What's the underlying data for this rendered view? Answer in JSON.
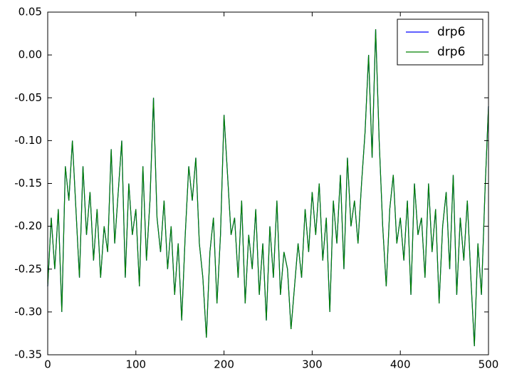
{
  "chart_data": {
    "type": "line",
    "x": [
      0,
      4,
      8,
      12,
      16,
      20,
      24,
      28,
      32,
      36,
      40,
      44,
      48,
      52,
      56,
      60,
      64,
      68,
      72,
      76,
      80,
      84,
      88,
      92,
      96,
      100,
      104,
      108,
      112,
      116,
      120,
      124,
      128,
      132,
      136,
      140,
      144,
      148,
      152,
      156,
      160,
      164,
      168,
      172,
      176,
      180,
      184,
      188,
      192,
      196,
      200,
      204,
      208,
      212,
      216,
      220,
      224,
      228,
      232,
      236,
      240,
      244,
      248,
      252,
      256,
      260,
      264,
      268,
      272,
      276,
      280,
      284,
      288,
      292,
      296,
      300,
      304,
      308,
      312,
      316,
      320,
      324,
      328,
      332,
      336,
      340,
      344,
      348,
      352,
      356,
      360,
      364,
      368,
      372,
      376,
      380,
      384,
      388,
      392,
      396,
      400,
      404,
      408,
      412,
      416,
      420,
      424,
      428,
      432,
      436,
      440,
      444,
      448,
      452,
      456,
      460,
      464,
      468,
      472,
      476,
      480,
      484,
      488,
      492,
      496,
      500
    ],
    "series": [
      {
        "name": "drp6",
        "color": "#0000ff",
        "values": [
          -0.27,
          -0.19,
          -0.25,
          -0.18,
          -0.3,
          -0.13,
          -0.17,
          -0.1,
          -0.18,
          -0.26,
          -0.13,
          -0.21,
          -0.16,
          -0.24,
          -0.18,
          -0.26,
          -0.2,
          -0.23,
          -0.11,
          -0.22,
          -0.16,
          -0.1,
          -0.26,
          -0.15,
          -0.21,
          -0.18,
          -0.27,
          -0.13,
          -0.24,
          -0.17,
          -0.05,
          -0.19,
          -0.23,
          -0.17,
          -0.25,
          -0.2,
          -0.28,
          -0.22,
          -0.31,
          -0.21,
          -0.13,
          -0.17,
          -0.12,
          -0.22,
          -0.26,
          -0.33,
          -0.23,
          -0.19,
          -0.29,
          -0.21,
          -0.07,
          -0.14,
          -0.21,
          -0.19,
          -0.26,
          -0.17,
          -0.29,
          -0.21,
          -0.25,
          -0.18,
          -0.28,
          -0.22,
          -0.31,
          -0.2,
          -0.26,
          -0.17,
          -0.28,
          -0.23,
          -0.25,
          -0.32,
          -0.27,
          -0.22,
          -0.26,
          -0.18,
          -0.23,
          -0.16,
          -0.21,
          -0.15,
          -0.24,
          -0.19,
          -0.3,
          -0.17,
          -0.22,
          -0.14,
          -0.25,
          -0.12,
          -0.2,
          -0.17,
          -0.22,
          -0.15,
          -0.09,
          0.0,
          -0.12,
          0.03,
          -0.1,
          -0.2,
          -0.27,
          -0.18,
          -0.14,
          -0.22,
          -0.19,
          -0.24,
          -0.17,
          -0.28,
          -0.15,
          -0.21,
          -0.19,
          -0.26,
          -0.15,
          -0.23,
          -0.18,
          -0.29,
          -0.2,
          -0.16,
          -0.25,
          -0.14,
          -0.28,
          -0.19,
          -0.24,
          -0.17,
          -0.26,
          -0.34,
          -0.22,
          -0.28,
          -0.16,
          -0.06
        ]
      },
      {
        "name": "drp6",
        "color": "#008000",
        "values": [
          -0.27,
          -0.19,
          -0.25,
          -0.18,
          -0.3,
          -0.13,
          -0.17,
          -0.1,
          -0.18,
          -0.26,
          -0.13,
          -0.21,
          -0.16,
          -0.24,
          -0.18,
          -0.26,
          -0.2,
          -0.23,
          -0.11,
          -0.22,
          -0.16,
          -0.1,
          -0.26,
          -0.15,
          -0.21,
          -0.18,
          -0.27,
          -0.13,
          -0.24,
          -0.17,
          -0.05,
          -0.19,
          -0.23,
          -0.17,
          -0.25,
          -0.2,
          -0.28,
          -0.22,
          -0.31,
          -0.21,
          -0.13,
          -0.17,
          -0.12,
          -0.22,
          -0.26,
          -0.33,
          -0.23,
          -0.19,
          -0.29,
          -0.21,
          -0.07,
          -0.14,
          -0.21,
          -0.19,
          -0.26,
          -0.17,
          -0.29,
          -0.21,
          -0.25,
          -0.18,
          -0.28,
          -0.22,
          -0.31,
          -0.2,
          -0.26,
          -0.17,
          -0.28,
          -0.23,
          -0.25,
          -0.32,
          -0.27,
          -0.22,
          -0.26,
          -0.18,
          -0.23,
          -0.16,
          -0.21,
          -0.15,
          -0.24,
          -0.19,
          -0.3,
          -0.17,
          -0.22,
          -0.14,
          -0.25,
          -0.12,
          -0.2,
          -0.17,
          -0.22,
          -0.15,
          -0.09,
          0.0,
          -0.12,
          0.03,
          -0.1,
          -0.2,
          -0.27,
          -0.18,
          -0.14,
          -0.22,
          -0.19,
          -0.24,
          -0.17,
          -0.28,
          -0.15,
          -0.21,
          -0.19,
          -0.26,
          -0.15,
          -0.23,
          -0.18,
          -0.29,
          -0.2,
          -0.16,
          -0.25,
          -0.14,
          -0.28,
          -0.19,
          -0.24,
          -0.17,
          -0.26,
          -0.34,
          -0.22,
          -0.28,
          -0.16,
          -0.06
        ]
      }
    ],
    "xlim": [
      0,
      500
    ],
    "xticks": [
      0,
      100,
      200,
      300,
      400,
      500
    ],
    "ylim": [
      -0.35,
      0.05
    ],
    "yticks": [
      -0.35,
      {
        "value": -0.3,
        "label": "-0.30"
      },
      -0.25,
      {
        "value": -0.2,
        "label": "-0.20"
      },
      -0.15,
      {
        "value": -0.1,
        "label": "-0.10"
      },
      -0.05,
      {
        "value": 0,
        "label": "0.00"
      },
      0.05
    ],
    "grid": false,
    "legend": "upper right"
  }
}
